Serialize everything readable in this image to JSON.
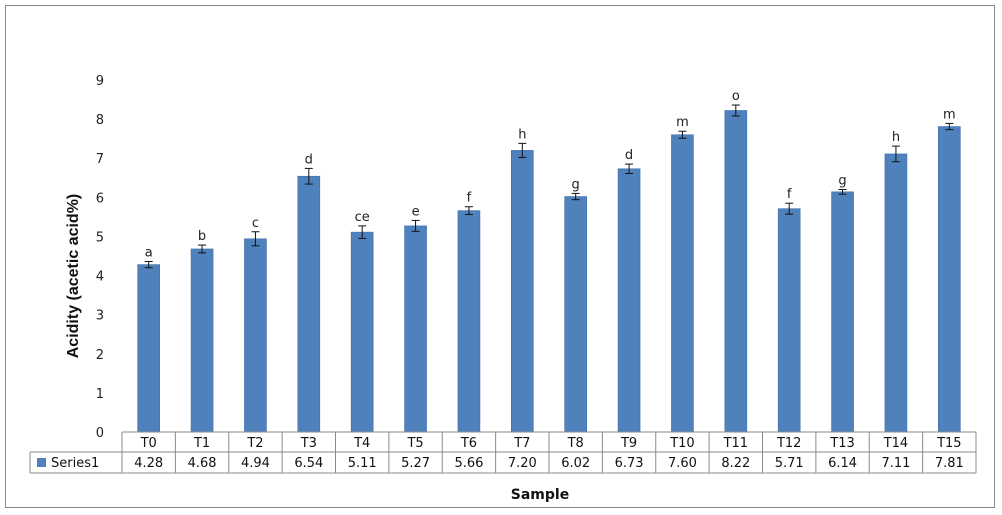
{
  "chart_data": {
    "type": "bar",
    "categories": [
      "T0",
      "T1",
      "T2",
      "T3",
      "T4",
      "T5",
      "T6",
      "T7",
      "T8",
      "T9",
      "T10",
      "T11",
      "T12",
      "T13",
      "T14",
      "T15"
    ],
    "series": [
      {
        "name": "Series1",
        "values": [
          4.28,
          4.68,
          4.94,
          6.54,
          5.11,
          5.27,
          5.66,
          7.2,
          6.02,
          6.73,
          7.6,
          8.22,
          5.71,
          6.14,
          7.11,
          7.81
        ],
        "value_labels": [
          "4.28",
          "4.68",
          "4.94",
          "6.54",
          "5.11",
          "5.27",
          "5.66",
          "7.20",
          "6.02",
          "6.73",
          "7.60",
          "8.22",
          "5.71",
          "6.14",
          "7.11",
          "7.81"
        ],
        "error": [
          0.08,
          0.1,
          0.18,
          0.2,
          0.16,
          0.14,
          0.1,
          0.18,
          0.08,
          0.12,
          0.09,
          0.14,
          0.14,
          0.06,
          0.2,
          0.08
        ],
        "color": "#4f81bd"
      }
    ],
    "significance_labels": [
      "a",
      "b",
      "c",
      "d",
      "ce",
      "e",
      "f",
      "h",
      "g",
      "d",
      "m",
      "o",
      "f",
      "g",
      "h",
      "m"
    ],
    "xlabel": "Sample",
    "ylabel": "Acidity (acetic acid%)",
    "ylim": [
      0,
      9
    ],
    "yticks": [
      0,
      1,
      2,
      3,
      4,
      5,
      6,
      7,
      8,
      9
    ],
    "grid": false,
    "legend": "data-table"
  }
}
